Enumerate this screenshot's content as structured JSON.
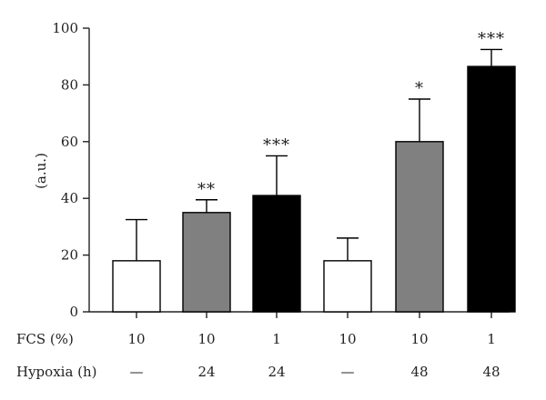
{
  "chart_data": {
    "type": "bar",
    "ylabel": "(a.u.)",
    "ylim": [
      0,
      100
    ],
    "yticks": [
      0,
      20,
      40,
      60,
      80,
      100
    ],
    "bars": [
      {
        "value": 18,
        "error": 14.5,
        "fill": "#ffffff",
        "sig": "",
        "fcs": "10",
        "hypoxia": "—"
      },
      {
        "value": 35,
        "error": 4.5,
        "fill": "#808080",
        "sig": "**",
        "fcs": "10",
        "hypoxia": "24"
      },
      {
        "value": 41,
        "error": 14,
        "fill": "#000000",
        "sig": "***",
        "fcs": "1",
        "hypoxia": "24"
      },
      {
        "value": 18,
        "error": 8,
        "fill": "#ffffff",
        "sig": "",
        "fcs": "10",
        "hypoxia": "—"
      },
      {
        "value": 60,
        "error": 15,
        "fill": "#808080",
        "sig": "*",
        "fcs": "10",
        "hypoxia": "48"
      },
      {
        "value": 86.5,
        "error": 6,
        "fill": "#000000",
        "sig": "***",
        "fcs": "1",
        "hypoxia": "48"
      }
    ],
    "row_labels": {
      "fcs": "FCS (%)",
      "hypoxia": "Hypoxia (h)"
    }
  }
}
